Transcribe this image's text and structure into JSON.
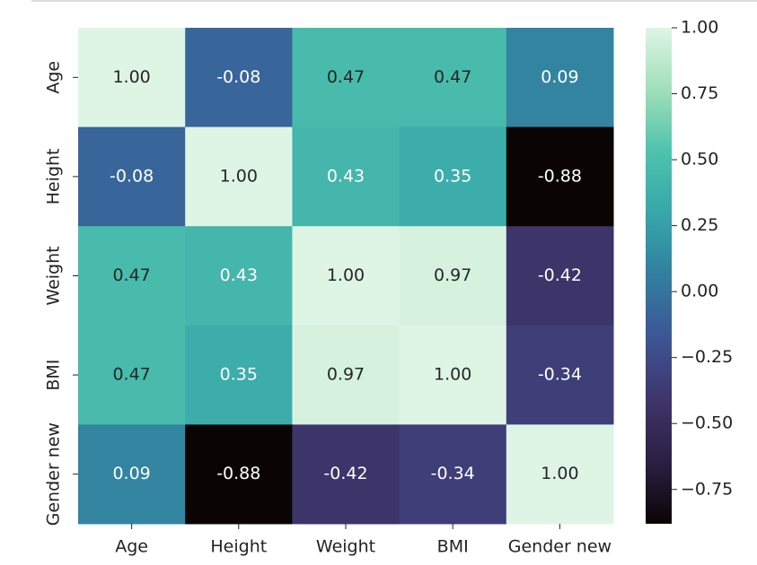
{
  "chart_data": {
    "type": "heatmap",
    "rows": [
      "Age",
      "Height",
      "Weight",
      "BMI",
      "Gender new"
    ],
    "columns": [
      "Age",
      "Height",
      "Weight",
      "BMI",
      "Gender new"
    ],
    "values": [
      [
        1.0,
        -0.08,
        0.47,
        0.47,
        0.09
      ],
      [
        -0.08,
        1.0,
        0.43,
        0.35,
        -0.88
      ],
      [
        0.47,
        0.43,
        1.0,
        0.97,
        -0.42
      ],
      [
        0.47,
        0.35,
        0.97,
        1.0,
        -0.34
      ],
      [
        0.09,
        -0.88,
        -0.42,
        -0.34,
        1.0
      ]
    ],
    "value_labels": [
      [
        "1.00",
        "-0.08",
        "0.47",
        "0.47",
        "0.09"
      ],
      [
        "-0.08",
        "1.00",
        "0.43",
        "0.35",
        "-0.88"
      ],
      [
        "0.47",
        "0.43",
        "1.00",
        "0.97",
        "-0.42"
      ],
      [
        "0.47",
        "0.35",
        "0.97",
        "1.00",
        "-0.34"
      ],
      [
        "0.09",
        "-0.88",
        "-0.42",
        "-0.34",
        "1.00"
      ]
    ],
    "colormap": [
      "#0b0405",
      "#2b1f43",
      "#3e356b",
      "#3d5596",
      "#317fa0",
      "#37a6aa",
      "#4ec2ad",
      "#a0dfb9",
      "#def5e5"
    ],
    "clim": [
      -0.88,
      1.0
    ],
    "cticks": [
      {
        "value": 1.0,
        "label": "1.00"
      },
      {
        "value": 0.75,
        "label": "0.75"
      },
      {
        "value": 0.5,
        "label": "0.50"
      },
      {
        "value": 0.25,
        "label": "0.25"
      },
      {
        "value": 0.0,
        "label": "0.00"
      },
      {
        "value": -0.25,
        "label": "−0.25"
      },
      {
        "value": -0.5,
        "label": "−0.50"
      },
      {
        "value": -0.75,
        "label": "−0.75"
      }
    ]
  }
}
